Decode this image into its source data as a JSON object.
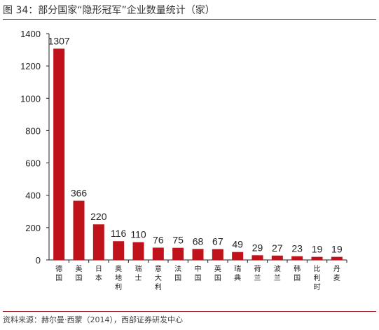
{
  "title": "图 34：部分国家“隐形冠军”企业数量统计（家）",
  "source": "资料来源：赫尔曼·西蒙（2014），西部证券研发中心",
  "colors": {
    "bar": "#c0121a",
    "rule": "#9b1c20",
    "axis": "#222222"
  },
  "chart_data": {
    "type": "bar",
    "categories": [
      "德国",
      "美国",
      "日本",
      "奥地利",
      "瑞士",
      "意大利",
      "法国",
      "中国",
      "英国",
      "瑞典",
      "荷兰",
      "波兰",
      "韩国",
      "比利时",
      "丹麦"
    ],
    "values": [
      1307,
      366,
      220,
      116,
      110,
      76,
      75,
      68,
      67,
      49,
      29,
      27,
      23,
      19,
      19
    ],
    "data_labels": [
      "1307",
      "366",
      "220",
      "116",
      "110",
      "76",
      "75",
      "68",
      "67",
      "49",
      "29",
      "27",
      "23",
      "19",
      "19"
    ],
    "yticks": [
      0,
      200,
      400,
      600,
      800,
      1000,
      1200,
      1400
    ],
    "ylim": [
      0,
      1400
    ],
    "grid": false,
    "legend": "none"
  }
}
